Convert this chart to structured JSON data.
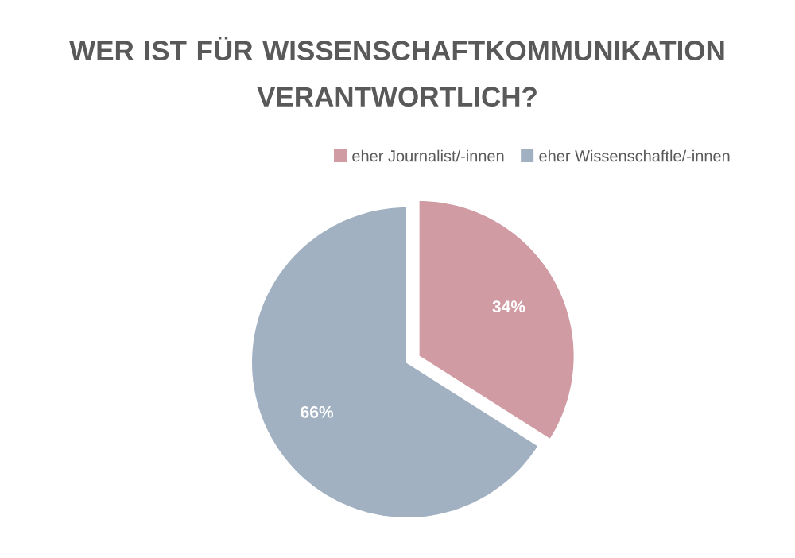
{
  "chart_data": {
    "type": "pie",
    "title": "WER IST FÜR WISSENSCHAFTKOMMUNIKATION VERANTWORTLICH?",
    "categories": [
      "eher Journalist/-innen",
      "eher Wissenschaftle/-innen"
    ],
    "values": [
      34,
      66
    ],
    "value_labels": [
      "34%",
      "66%"
    ],
    "colors": [
      "#d19ba3",
      "#a2b1c2"
    ],
    "legend": "top"
  }
}
